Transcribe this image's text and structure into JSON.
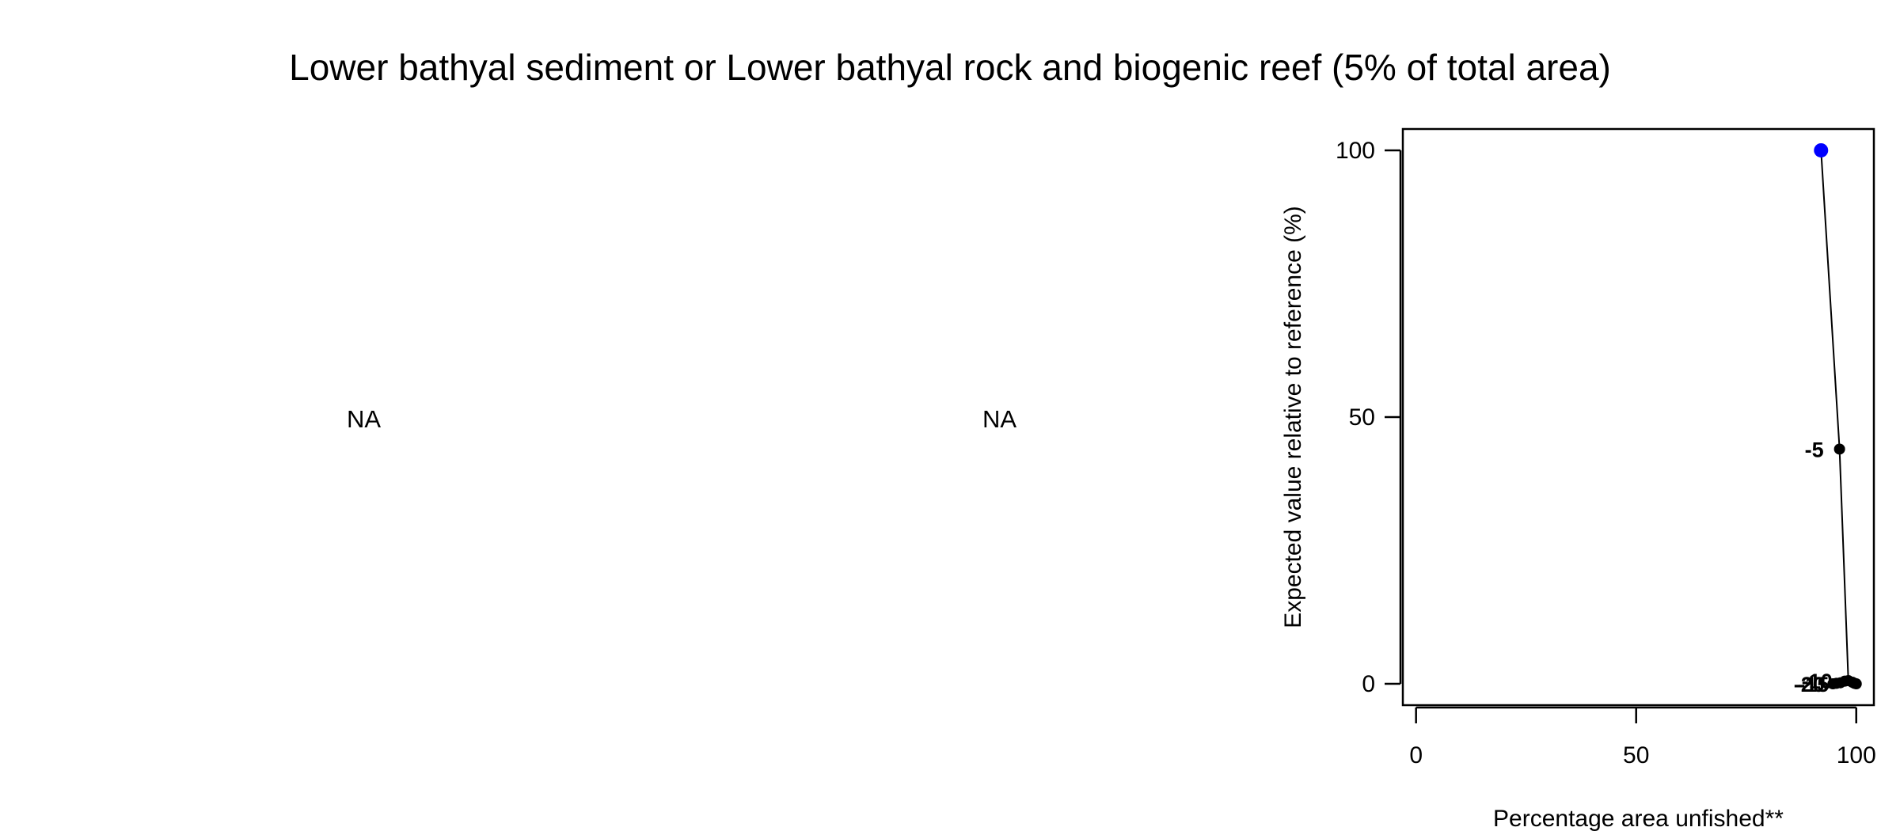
{
  "title": "Lower bathyal sediment or Lower bathyal rock and biogenic reef (5% of total area)",
  "panels": {
    "left_placeholder": "NA",
    "middle_placeholder": "NA"
  },
  "chart_data": {
    "type": "line",
    "xlabel": "Percentage area unfished**",
    "ylabel": "Expected value relative to reference (%)",
    "xlim": [
      -3,
      104
    ],
    "ylim": [
      -4,
      104
    ],
    "x_ticks": [
      0,
      50,
      100
    ],
    "y_ticks": [
      0,
      50,
      100
    ],
    "grid": false,
    "legend": "none",
    "line_color": "#000000",
    "point_color": "#000000",
    "highlight_color": "#0000ff",
    "highlight_point": {
      "x": 92,
      "y": 100
    },
    "series": [
      {
        "points": [
          {
            "x": 92,
            "y": 100
          },
          {
            "x": 96.2,
            "y": 44
          },
          {
            "x": 98.2,
            "y": 0.6
          },
          {
            "x": 99.1,
            "y": 0.3
          },
          {
            "x": 99.6,
            "y": 0.1
          },
          {
            "x": 100,
            "y": 0
          },
          {
            "x": 97.4,
            "y": 0.5
          },
          {
            "x": 96.4,
            "y": 0.2
          },
          {
            "x": 95.5,
            "y": 0.1
          },
          {
            "x": 94.7,
            "y": 0
          }
        ]
      }
    ],
    "point_labels": [
      {
        "x": 96.2,
        "y": 44,
        "text": "-5"
      },
      {
        "x": 98.2,
        "y": 0.6,
        "text": "-10"
      },
      {
        "x": 97.4,
        "y": 0,
        "text": "-15"
      },
      {
        "x": 96.4,
        "y": 0,
        "text": "-20"
      }
    ]
  }
}
